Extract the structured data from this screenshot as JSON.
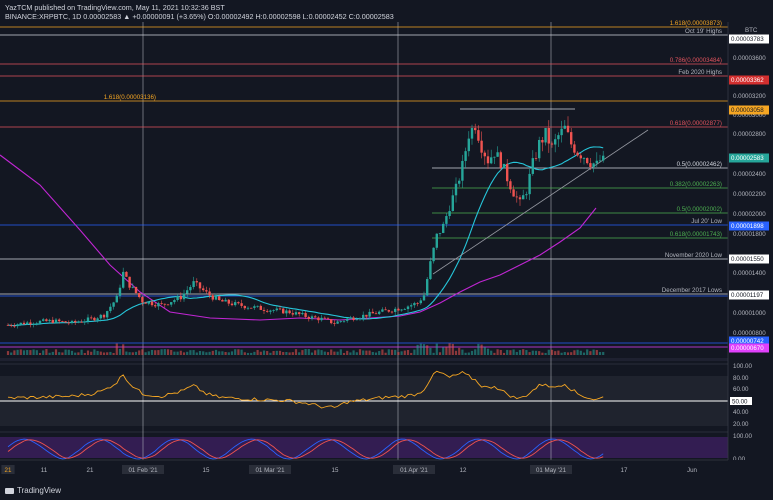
{
  "header": {
    "line1": "YazTCM published on TradingView.com, May 11, 2021 10:32:36 BST",
    "line2": "BINANCE:XRPBTC, 1D 0.00002583 ▲ +0.00000091 (+3.65%) O:0.00002492 H:0.00002598 L:0.00002452 C:0.00002583"
  },
  "footer": {
    "brand": "TradingView"
  },
  "price_axis": {
    "currency": "BTC",
    "ticks": [
      "0.00003600",
      "0.00003200",
      "0.00003000",
      "0.00002800",
      "0.00002400",
      "0.00002200",
      "0.00002000",
      "0.00001800",
      "0.00001400",
      "0.00001200",
      "0.00001000",
      "0.00000800"
    ]
  },
  "levels": [
    {
      "label": "1.618(0.00003873)",
      "color": "#f5a623"
    },
    {
      "label": "Oct 19' Highs",
      "color": "#b2b5be"
    },
    {
      "label": "0.786(0.00003484)",
      "color": "#e0535d"
    },
    {
      "label": "Feb 2020 Highs",
      "color": "#b2b5be"
    },
    {
      "label": "1.618(0.00003136)",
      "color": "#f5a623"
    },
    {
      "label": "0.618(0.00002877)",
      "color": "#e0535d"
    },
    {
      "label": "0.5(0.00002462)",
      "color": "#d1d4dc"
    },
    {
      "label": "0.382(0.00002263)",
      "color": "#4caf50"
    },
    {
      "label": "0.5(0.00002002)",
      "color": "#4caf50"
    },
    {
      "label": "Jul 20' Low",
      "color": "#b2b5be"
    },
    {
      "label": "0.618(0.00001743)",
      "color": "#4caf50"
    },
    {
      "label": "November 2020 Low",
      "color": "#b2b5be"
    },
    {
      "label": "December 2017 Lows",
      "color": "#b2b5be"
    }
  ],
  "badges": [
    {
      "text": "0.00003783",
      "bg": "#ffffff",
      "fg": "#131722"
    },
    {
      "text": "0.00003362",
      "bg": "#d32f2f",
      "fg": "#ffffff"
    },
    {
      "text": "0.00003058",
      "bg": "#f5a623",
      "fg": "#131722"
    },
    {
      "text": "0.00002583",
      "bg": "#26a69a",
      "fg": "#ffffff"
    },
    {
      "text": "0.00001898",
      "bg": "#2962ff",
      "fg": "#ffffff"
    },
    {
      "text": "0.00001550",
      "bg": "#ffffff",
      "fg": "#131722"
    },
    {
      "text": "0.00001197",
      "bg": "#ffffff",
      "fg": "#131722"
    },
    {
      "text": "0.00000742",
      "bg": "#2962ff",
      "fg": "#ffffff"
    },
    {
      "text": "0.00000670",
      "bg": "#e040fb",
      "fg": "#ffffff"
    }
  ],
  "rsi_axis": {
    "ticks": [
      "100.00",
      "80.00",
      "60.00",
      "40.00",
      "20.00"
    ],
    "current": "50.00"
  },
  "stoch_axis": {
    "ticks": [
      "100.00",
      "0.00"
    ]
  },
  "time_axis": {
    "labels": [
      "21",
      "11",
      "21",
      "01 Feb '21",
      "15",
      "01 Mar '21",
      "15",
      "01 Apr '21",
      "12",
      "01 May '21",
      "17",
      "Jun"
    ]
  },
  "chart_data": {
    "type": "candlestick",
    "symbol": "XRPBTC",
    "interval": "1D",
    "ylim": [
      6.5e-06,
      4.05e-05
    ],
    "close_path": [
      [
        0,
        8.8e-06
      ],
      [
        8,
        9.1e-06
      ],
      [
        14,
        9.2e-06
      ],
      [
        20,
        9e-06
      ],
      [
        26,
        9.4e-06
      ],
      [
        30,
        9.8e-06
      ],
      [
        34,
        1.15e-05
      ],
      [
        36,
        1.4e-05
      ],
      [
        38,
        1.28e-05
      ],
      [
        42,
        1.12e-05
      ],
      [
        48,
        1.08e-05
      ],
      [
        54,
        1.16e-05
      ],
      [
        58,
        1.3e-05
      ],
      [
        62,
        1.2e-05
      ],
      [
        66,
        1.12e-05
      ],
      [
        72,
        1.08e-05
      ],
      [
        80,
        1.04e-05
      ],
      [
        88,
        1.01e-05
      ],
      [
        94,
        9.6e-06
      ],
      [
        98,
        9.4e-06
      ],
      [
        102,
        9e-06
      ],
      [
        106,
        9.4e-06
      ],
      [
        112,
        9.8e-06
      ],
      [
        118,
        1.02e-05
      ],
      [
        124,
        1.06e-05
      ],
      [
        128,
        1.1e-05
      ],
      [
        130,
        1.18e-05
      ],
      [
        132,
        1.5e-05
      ],
      [
        134,
        1.78e-05
      ],
      [
        136,
        1.88e-05
      ],
      [
        138,
        2.08e-05
      ],
      [
        140,
        2.25e-05
      ],
      [
        142,
        2.48e-05
      ],
      [
        144,
        2.8e-05
      ],
      [
        146,
        2.9e-05
      ],
      [
        148,
        2.68e-05
      ],
      [
        150,
        2.54e-05
      ],
      [
        152,
        2.62e-05
      ],
      [
        154,
        2.52e-05
      ],
      [
        156,
        2.36e-05
      ],
      [
        158,
        2.22e-05
      ],
      [
        160,
        2.1e-05
      ],
      [
        162,
        2.24e-05
      ],
      [
        164,
        2.5e-05
      ],
      [
        166,
        2.7e-05
      ],
      [
        168,
        2.8e-05
      ],
      [
        170,
        2.66e-05
      ],
      [
        172,
        2.78e-05
      ],
      [
        174,
        2.86e-05
      ],
      [
        176,
        2.7e-05
      ],
      [
        178,
        2.62e-05
      ],
      [
        180,
        2.58e-05
      ],
      [
        182,
        2.52e-05
      ],
      [
        184,
        2.49e-05
      ],
      [
        186,
        2.58e-05
      ]
    ],
    "rsi_path": [
      [
        0,
        45
      ],
      [
        10,
        46
      ],
      [
        20,
        48
      ],
      [
        26,
        52
      ],
      [
        30,
        58
      ],
      [
        34,
        72
      ],
      [
        36,
        86
      ],
      [
        38,
        70
      ],
      [
        42,
        52
      ],
      [
        48,
        48
      ],
      [
        54,
        56
      ],
      [
        58,
        66
      ],
      [
        62,
        52
      ],
      [
        66,
        46
      ],
      [
        72,
        44
      ],
      [
        80,
        42
      ],
      [
        88,
        40
      ],
      [
        94,
        35
      ],
      [
        98,
        30
      ],
      [
        102,
        28
      ],
      [
        106,
        38
      ],
      [
        112,
        42
      ],
      [
        118,
        46
      ],
      [
        124,
        48
      ],
      [
        128,
        52
      ],
      [
        130,
        60
      ],
      [
        132,
        78
      ],
      [
        134,
        90
      ],
      [
        136,
        86
      ],
      [
        138,
        80
      ],
      [
        140,
        84
      ],
      [
        142,
        88
      ],
      [
        144,
        82
      ],
      [
        146,
        76
      ],
      [
        148,
        66
      ],
      [
        150,
        62
      ],
      [
        152,
        66
      ],
      [
        154,
        58
      ],
      [
        156,
        52
      ],
      [
        158,
        46
      ],
      [
        160,
        44
      ],
      [
        162,
        50
      ],
      [
        164,
        58
      ],
      [
        166,
        66
      ],
      [
        168,
        70
      ],
      [
        170,
        62
      ],
      [
        172,
        66
      ],
      [
        174,
        70
      ],
      [
        176,
        60
      ],
      [
        178,
        52
      ],
      [
        180,
        48
      ],
      [
        182,
        44
      ],
      [
        184,
        42
      ],
      [
        186,
        46
      ]
    ],
    "x_domain": [
      0,
      190
    ],
    "last_close": 2.583e-05
  }
}
